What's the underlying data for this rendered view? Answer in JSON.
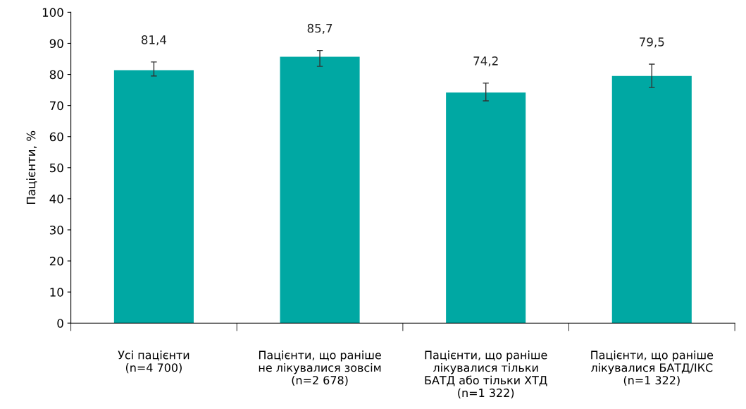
{
  "chart_data": {
    "type": "bar",
    "ylabel": "Пацієнти, %",
    "categories": [
      "Усі пацієнти\n(n=4 700)",
      "Пацієнти, що раніше\nне лікувалися зовсім\n(n=2 678)",
      "Пацієнти, що раніше\nлікувалися тільки\nБАТД або тільки ХТД\n(n=1 322)",
      "Пацієнти, що раніше\nлікувалися БАТД/ІКС\n(n=1 322)"
    ],
    "values": [
      81.4,
      85.7,
      74.2,
      79.5
    ],
    "errors": [
      [
        79.5,
        84.0
      ],
      [
        82.6,
        87.7
      ],
      [
        71.5,
        77.2
      ],
      [
        75.8,
        83.3
      ]
    ],
    "value_labels": [
      "81,4",
      "85,7",
      "74,2",
      "79,5"
    ],
    "color": "#00a8a3",
    "ylim": [
      0,
      100
    ],
    "yticks": [
      0,
      10,
      20,
      30,
      40,
      50,
      60,
      70,
      80,
      90,
      100
    ],
    "grid": false,
    "legend": false
  }
}
